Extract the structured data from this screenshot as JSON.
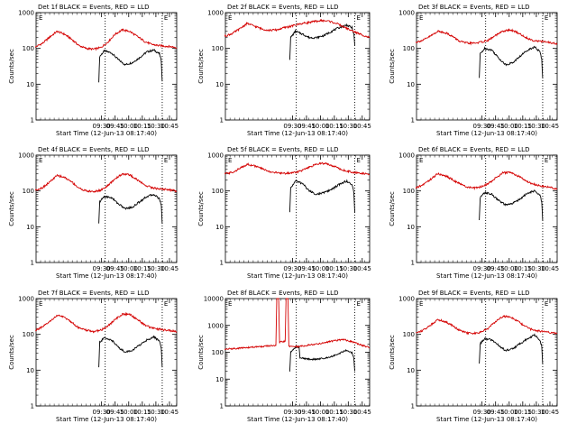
{
  "colors": {
    "events": "#000000",
    "lld": "#d40000",
    "axis": "#000000",
    "marker": "#000000"
  },
  "shared": {
    "ylabel": "Counts/sec",
    "xlabel": "Start Time (12-Jun-13 08:17:40)",
    "x_ticks": [
      "09:30",
      "09:45",
      "10:00",
      "10:15",
      "10:30",
      "10:45"
    ],
    "y_ticks": [
      "1",
      "10",
      "100",
      "1000"
    ],
    "y_ticks_ext": [
      "1",
      "10",
      "100",
      "1000",
      "10000"
    ],
    "flag_letter": "E"
  },
  "chart_data": [
    {
      "type": "line",
      "panel": "det1f",
      "title": "Det 1f  BLACK = Events, RED = LLD",
      "ylim": [
        1,
        1000
      ],
      "x_range": [
        "08:17:40",
        "10:53"
      ],
      "markers": [
        "09:34",
        "10:37"
      ],
      "series": [
        {
          "name": "Events",
          "x": [
            "09:27",
            "09:28",
            "09:33",
            "09:41",
            "09:48",
            "09:56",
            "10:04",
            "10:12",
            "10:20",
            "10:28",
            "10:34",
            "10:36",
            "10:37"
          ],
          "values": [
            12,
            60,
            85,
            75,
            50,
            35,
            40,
            55,
            80,
            90,
            70,
            45,
            12
          ]
        },
        {
          "name": "LLD",
          "x": [
            "08:17",
            "08:25",
            "08:33",
            "08:41",
            "08:49",
            "08:57",
            "09:05",
            "09:13",
            "09:21",
            "09:29",
            "09:37",
            "09:45",
            "09:53",
            "10:01",
            "10:09",
            "10:17",
            "10:25",
            "10:33",
            "10:41",
            "10:49",
            "10:53"
          ],
          "values": [
            110,
            140,
            210,
            300,
            250,
            180,
            120,
            100,
            95,
            105,
            150,
            250,
            330,
            300,
            220,
            160,
            130,
            120,
            115,
            110,
            105
          ]
        }
      ]
    },
    {
      "type": "line",
      "panel": "det2f",
      "title": "Det 2f  BLACK = Events, RED = LLD",
      "ylim": [
        1,
        1000
      ],
      "x_range": [
        "08:17:40",
        "10:53"
      ],
      "markers": [
        "09:34",
        "10:37"
      ],
      "series": [
        {
          "name": "Events",
          "x": [
            "09:27",
            "09:28",
            "09:33",
            "09:41",
            "09:48",
            "09:56",
            "10:04",
            "10:12",
            "10:20",
            "10:28",
            "10:34",
            "10:36",
            "10:37"
          ],
          "values": [
            50,
            200,
            300,
            250,
            200,
            200,
            230,
            300,
            380,
            450,
            380,
            250,
            120
          ]
        },
        {
          "name": "LLD",
          "x": [
            "08:17",
            "08:25",
            "08:33",
            "08:41",
            "08:49",
            "08:57",
            "09:05",
            "09:13",
            "09:21",
            "09:29",
            "09:37",
            "09:45",
            "09:53",
            "10:01",
            "10:09",
            "10:17",
            "10:25",
            "10:33",
            "10:41",
            "10:49",
            "10:53"
          ],
          "values": [
            220,
            260,
            350,
            500,
            420,
            350,
            320,
            330,
            380,
            420,
            480,
            520,
            560,
            600,
            580,
            500,
            400,
            320,
            260,
            220,
            200
          ]
        }
      ]
    },
    {
      "type": "line",
      "panel": "det3f",
      "title": "Det 3f  BLACK = Events, RED = LLD",
      "ylim": [
        1,
        1000
      ],
      "x_range": [
        "08:17:40",
        "10:53"
      ],
      "markers": [
        "09:34",
        "10:37"
      ],
      "series": [
        {
          "name": "Events",
          "x": [
            "09:27",
            "09:28",
            "09:33",
            "09:41",
            "09:48",
            "09:56",
            "10:04",
            "10:12",
            "10:20",
            "10:28",
            "10:34",
            "10:36",
            "10:37"
          ],
          "values": [
            15,
            70,
            100,
            90,
            55,
            35,
            40,
            60,
            90,
            110,
            80,
            50,
            15
          ]
        },
        {
          "name": "LLD",
          "x": [
            "08:17",
            "08:25",
            "08:33",
            "08:41",
            "08:49",
            "08:57",
            "09:05",
            "09:13",
            "09:21",
            "09:29",
            "09:37",
            "09:45",
            "09:53",
            "10:01",
            "10:09",
            "10:17",
            "10:25",
            "10:33",
            "10:41",
            "10:49",
            "10:53"
          ],
          "values": [
            150,
            170,
            220,
            300,
            280,
            220,
            160,
            140,
            140,
            150,
            170,
            230,
            300,
            330,
            280,
            210,
            170,
            160,
            150,
            140,
            130
          ]
        }
      ]
    },
    {
      "type": "line",
      "panel": "det4f",
      "title": "Det 4f  BLACK = Events, RED = LLD",
      "ylim": [
        1,
        1000
      ],
      "x_range": [
        "08:17:40",
        "10:53"
      ],
      "markers": [
        "09:34",
        "10:37"
      ],
      "series": [
        {
          "name": "Events",
          "x": [
            "09:27",
            "09:28",
            "09:33",
            "09:41",
            "09:48",
            "09:56",
            "10:04",
            "10:12",
            "10:20",
            "10:28",
            "10:34",
            "10:36",
            "10:37"
          ],
          "values": [
            12,
            50,
            70,
            65,
            45,
            32,
            35,
            50,
            70,
            80,
            60,
            40,
            12
          ]
        },
        {
          "name": "LLD",
          "x": [
            "08:17",
            "08:25",
            "08:33",
            "08:41",
            "08:49",
            "08:57",
            "09:05",
            "09:13",
            "09:21",
            "09:29",
            "09:37",
            "09:45",
            "09:53",
            "10:01",
            "10:09",
            "10:17",
            "10:25",
            "10:33",
            "10:41",
            "10:49",
            "10:53"
          ],
          "values": [
            105,
            125,
            180,
            270,
            240,
            180,
            120,
            100,
            95,
            105,
            140,
            220,
            300,
            280,
            210,
            150,
            125,
            115,
            110,
            105,
            100
          ]
        }
      ]
    },
    {
      "type": "line",
      "panel": "det5f",
      "title": "Det 5f  BLACK = Events, RED = LLD",
      "ylim": [
        1,
        1000
      ],
      "x_range": [
        "08:17:40",
        "10:53"
      ],
      "markers": [
        "09:34",
        "10:37"
      ],
      "series": [
        {
          "name": "Events",
          "x": [
            "09:27",
            "09:28",
            "09:33",
            "09:41",
            "09:48",
            "09:56",
            "10:04",
            "10:12",
            "10:20",
            "10:28",
            "10:34",
            "10:36",
            "10:37"
          ],
          "values": [
            25,
            120,
            190,
            160,
            100,
            80,
            90,
            110,
            150,
            190,
            150,
            90,
            25
          ]
        },
        {
          "name": "LLD",
          "x": [
            "08:17",
            "08:25",
            "08:33",
            "08:41",
            "08:49",
            "08:57",
            "09:05",
            "09:13",
            "09:21",
            "09:29",
            "09:37",
            "09:45",
            "09:53",
            "10:01",
            "10:09",
            "10:17",
            "10:25",
            "10:33",
            "10:41",
            "10:49",
            "10:53"
          ],
          "values": [
            300,
            330,
            420,
            560,
            500,
            420,
            350,
            320,
            310,
            320,
            350,
            420,
            520,
            600,
            560,
            460,
            380,
            340,
            320,
            300,
            290
          ]
        }
      ]
    },
    {
      "type": "line",
      "panel": "det6f",
      "title": "Det 6f  BLACK = Events, RED = LLD",
      "ylim": [
        1,
        1000
      ],
      "x_range": [
        "08:17:40",
        "10:53"
      ],
      "markers": [
        "09:34",
        "10:37"
      ],
      "series": [
        {
          "name": "Events",
          "x": [
            "09:27",
            "09:28",
            "09:33",
            "09:41",
            "09:48",
            "09:56",
            "10:04",
            "10:12",
            "10:20",
            "10:28",
            "10:34",
            "10:36",
            "10:37"
          ],
          "values": [
            15,
            65,
            90,
            80,
            55,
            40,
            45,
            60,
            85,
            100,
            75,
            50,
            15
          ]
        },
        {
          "name": "LLD",
          "x": [
            "08:17",
            "08:25",
            "08:33",
            "08:41",
            "08:49",
            "08:57",
            "09:05",
            "09:13",
            "09:21",
            "09:29",
            "09:37",
            "09:45",
            "09:53",
            "10:01",
            "10:09",
            "10:17",
            "10:25",
            "10:33",
            "10:41",
            "10:49",
            "10:53"
          ],
          "values": [
            120,
            150,
            210,
            300,
            270,
            210,
            160,
            130,
            120,
            130,
            160,
            230,
            320,
            330,
            270,
            200,
            160,
            140,
            130,
            120,
            110
          ]
        }
      ]
    },
    {
      "type": "line",
      "panel": "det7f",
      "title": "Det 7f  BLACK = Events, RED = LLD",
      "ylim": [
        1,
        1000
      ],
      "x_range": [
        "08:17:40",
        "10:53"
      ],
      "markers": [
        "09:34",
        "10:37"
      ],
      "series": [
        {
          "name": "Events",
          "x": [
            "09:27",
            "09:28",
            "09:33",
            "09:41",
            "09:48",
            "09:56",
            "10:04",
            "10:12",
            "10:20",
            "10:28",
            "10:34",
            "10:36",
            "10:37"
          ],
          "values": [
            12,
            60,
            80,
            70,
            45,
            32,
            36,
            50,
            70,
            85,
            65,
            40,
            12
          ]
        },
        {
          "name": "LLD",
          "x": [
            "08:17",
            "08:25",
            "08:33",
            "08:41",
            "08:49",
            "08:57",
            "09:05",
            "09:13",
            "09:21",
            "09:29",
            "09:37",
            "09:45",
            "09:53",
            "10:01",
            "10:09",
            "10:17",
            "10:25",
            "10:33",
            "10:41",
            "10:49",
            "10:53"
          ],
          "values": [
            130,
            160,
            230,
            340,
            300,
            220,
            150,
            130,
            120,
            130,
            170,
            260,
            370,
            360,
            270,
            190,
            150,
            140,
            130,
            125,
            120
          ]
        }
      ]
    },
    {
      "type": "line",
      "panel": "det8f",
      "title": "Det 8f  BLACK = Events, RED = LLD",
      "ylim": [
        1,
        10000
      ],
      "x_range": [
        "08:17:40",
        "10:53"
      ],
      "markers": [
        "09:34",
        "10:37"
      ],
      "series": [
        {
          "name": "Events",
          "x": [
            "09:27",
            "09:28",
            "09:33",
            "09:37",
            "09:38",
            "09:41",
            "09:48",
            "09:56",
            "10:04",
            "10:12",
            "10:20",
            "10:28",
            "10:34",
            "10:36",
            "10:37"
          ],
          "values": [
            20,
            100,
            150,
            160,
            60,
            60,
            55,
            55,
            60,
            70,
            90,
            120,
            95,
            60,
            20
          ]
        },
        {
          "name": "LLD",
          "x": [
            "08:17",
            "08:30",
            "09:12",
            "09:13",
            "09:15",
            "09:16",
            "09:17",
            "09:22",
            "09:23",
            "09:25",
            "09:26",
            "09:35",
            "09:45",
            "09:55",
            "10:05",
            "10:15",
            "10:25",
            "10:35",
            "10:45",
            "10:53"
          ],
          "values": [
            130,
            140,
            180,
            10000,
            10000,
            220,
            240,
            260,
            10000,
            10000,
            170,
            160,
            180,
            200,
            230,
            270,
            300,
            240,
            180,
            150
          ]
        }
      ]
    },
    {
      "type": "line",
      "panel": "det9f",
      "title": "Det 9f  BLACK = Events, RED = LLD",
      "ylim": [
        1,
        1000
      ],
      "x_range": [
        "08:17:40",
        "10:53"
      ],
      "markers": [
        "09:34",
        "10:37"
      ],
      "series": [
        {
          "name": "Events",
          "x": [
            "09:27",
            "09:28",
            "09:33",
            "09:41",
            "09:48",
            "09:56",
            "10:04",
            "10:12",
            "10:20",
            "10:28",
            "10:34",
            "10:36",
            "10:37"
          ],
          "values": [
            15,
            55,
            75,
            70,
            50,
            35,
            40,
            55,
            75,
            95,
            70,
            45,
            15
          ]
        },
        {
          "name": "LLD",
          "x": [
            "08:17",
            "08:25",
            "08:33",
            "08:41",
            "08:49",
            "08:57",
            "09:05",
            "09:13",
            "09:21",
            "09:29",
            "09:37",
            "09:45",
            "09:53",
            "10:01",
            "10:09",
            "10:17",
            "10:25",
            "10:33",
            "10:41",
            "10:49",
            "10:53"
          ],
          "values": [
            110,
            130,
            180,
            260,
            230,
            180,
            130,
            110,
            105,
            115,
            150,
            230,
            320,
            310,
            240,
            170,
            135,
            125,
            115,
            110,
            105
          ]
        }
      ]
    }
  ]
}
